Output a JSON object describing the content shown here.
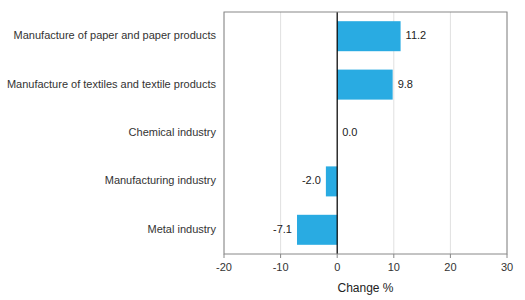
{
  "chart_data": {
    "type": "bar",
    "orientation": "horizontal",
    "categories": [
      "Metal industry",
      "Manufacturing industry",
      "Chemical industry",
      "Manufacture of textiles and textile products",
      "Manufacture of paper and paper products"
    ],
    "values": [
      -7.1,
      -2.0,
      0.0,
      9.8,
      11.2
    ],
    "value_labels": [
      "-7.1",
      "-2.0",
      "0.0",
      "9.8",
      "11.2"
    ],
    "data_labels": true,
    "color": "#29abe2",
    "xlabel": "Change %",
    "xlim": [
      -20,
      30
    ],
    "xticks": [
      -20,
      -10,
      0,
      10,
      20,
      30
    ],
    "grid": true
  }
}
